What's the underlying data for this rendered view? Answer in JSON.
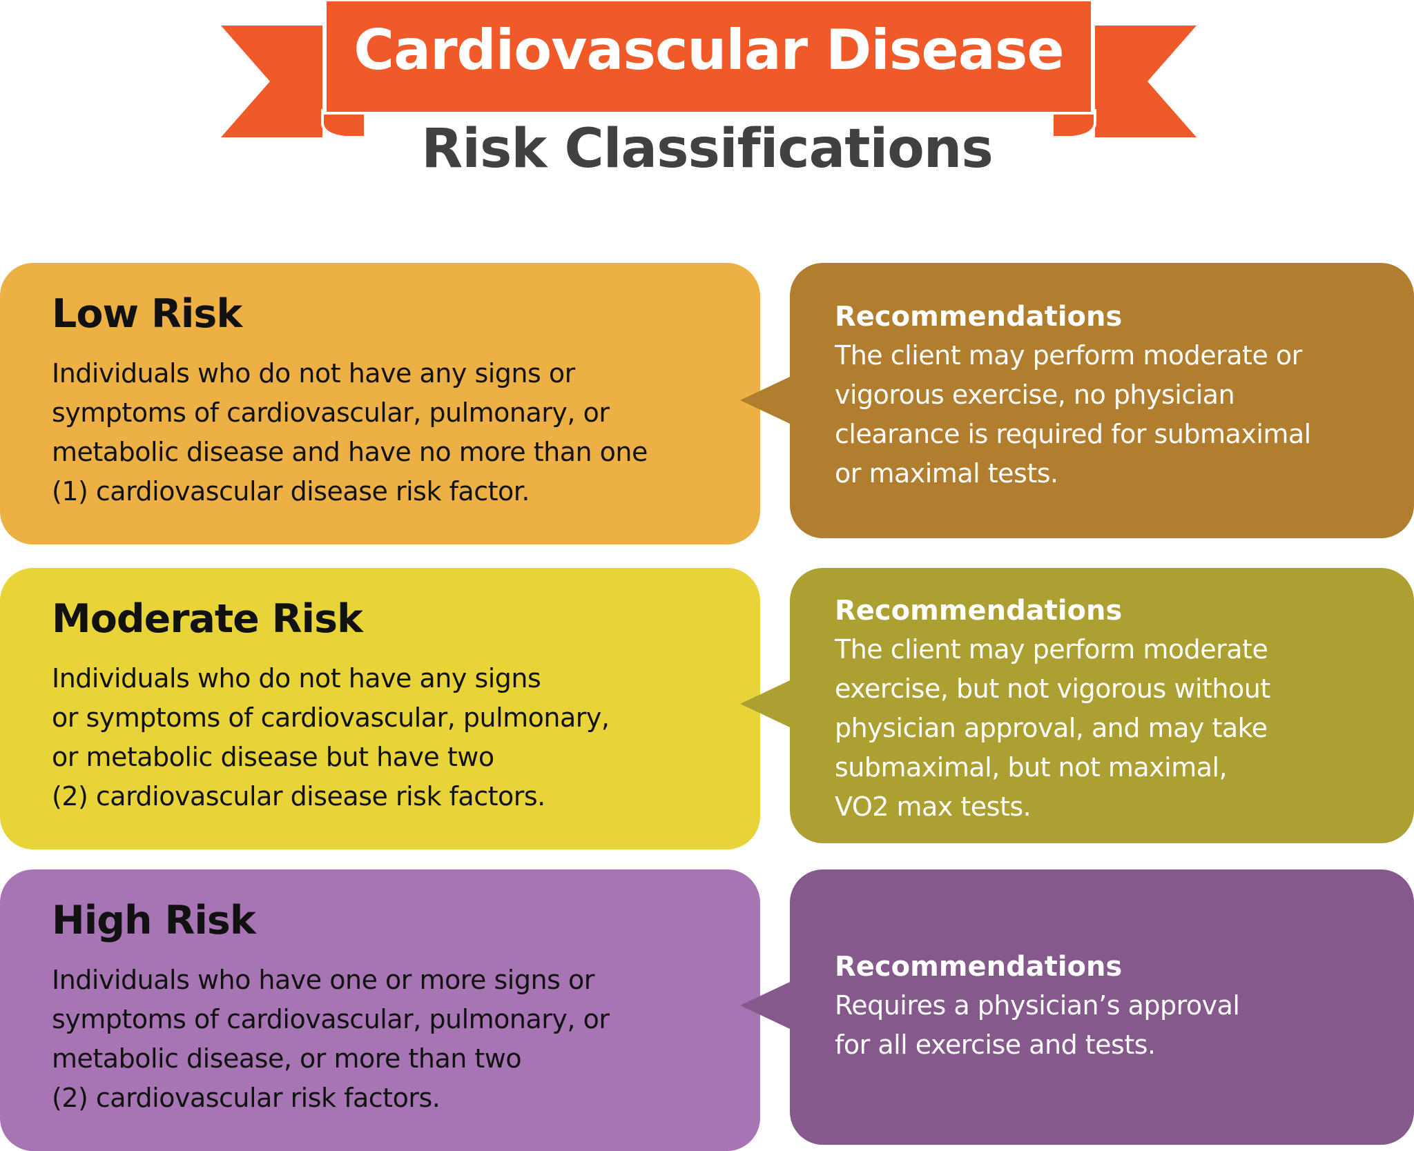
{
  "header": {
    "title": "Cardiovascular Disease",
    "subtitle": "Risk Classifications",
    "ribbon_color": "#F05A28"
  },
  "rows": [
    {
      "heading": "Low Risk",
      "description": "Individuals who do not have any signs or\nsymptoms of cardiovascular, pulmonary, or\nmetabolic disease and have no more than one\n(1) cardiovascular disease risk factor.",
      "rec_heading": "Recommendations",
      "recommendation": "The client may perform moderate or\nvigorous exercise, no physician\nclearance is required for submaximal\nor maximal tests.",
      "color": "#EDB044",
      "rec_color": "#B07E2E"
    },
    {
      "heading": "Moderate Risk",
      "description": "Individuals who do not have any signs\nor symptoms of cardiovascular, pulmonary,\nor metabolic disease but have two\n(2) cardiovascular disease risk factors.",
      "rec_heading": "Recommendations",
      "recommendation": "The client may perform moderate\nexercise, but not vigorous without\nphysician approval, and may take\nsubmaximal, but not maximal,\nVO2 max tests.",
      "color": "#E8D438",
      "rec_color": "#ADA032"
    },
    {
      "heading": "High Risk",
      "description": "Individuals who have one or more signs or\nsymptoms of cardiovascular, pulmonary, or\nmetabolic disease, or more than two\n(2) cardiovascular risk factors.",
      "rec_heading": "Recommendations",
      "recommendation": "Requires a physician’s approval\nfor all exercise and tests.",
      "color": "#A875B4",
      "rec_color": "#85598B"
    }
  ]
}
